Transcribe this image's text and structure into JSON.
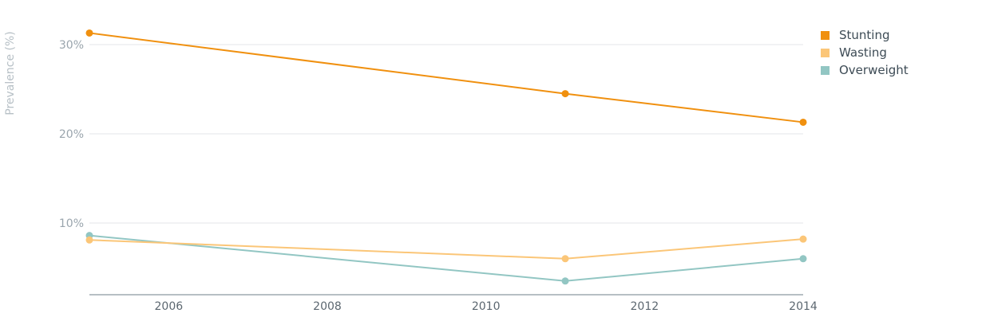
{
  "chart_data": {
    "type": "line",
    "title": "",
    "ylabel": "Prevalence (%)",
    "xlabel": "",
    "xlim": [
      2005,
      2014
    ],
    "ylim": [
      1.5,
      33
    ],
    "x_ticks": [
      "2006",
      "2008",
      "2010",
      "2012",
      "2014"
    ],
    "y_ticks": [
      "10%",
      "20%",
      "30%"
    ],
    "grid": true,
    "legend_position": "top-right",
    "x": [
      2005,
      2011,
      2014
    ],
    "series": [
      {
        "name": "Stunting",
        "color": "#f0900f",
        "values": [
          31.3,
          24.5,
          21.3
        ]
      },
      {
        "name": "Wasting",
        "color": "#fbc678",
        "values": [
          8.1,
          6.0,
          8.2
        ]
      },
      {
        "name": "Overweight",
        "color": "#92c6c3",
        "values": [
          8.6,
          3.5,
          6.0
        ]
      }
    ]
  }
}
